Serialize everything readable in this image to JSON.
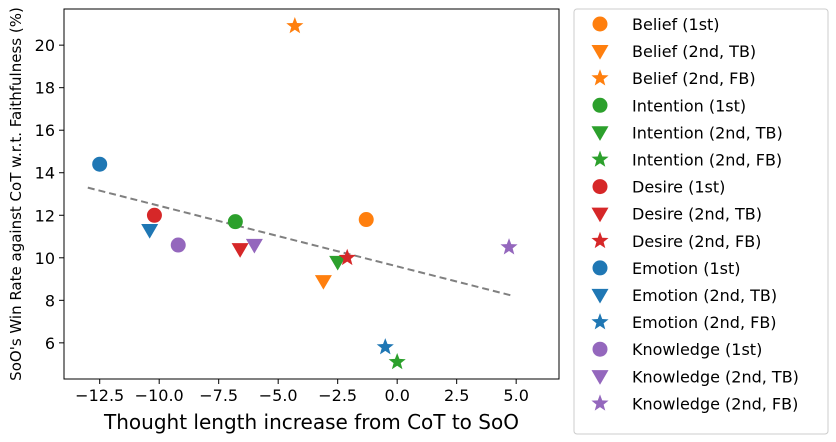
{
  "chart_data": {
    "type": "scatter",
    "title": "",
    "xlabel": "Thought length increase from CoT to SoO",
    "ylabel": "SoO's Win Rate against CoT w.r.t. Faithfulness (%)",
    "xlim": [
      -14.0,
      6.8
    ],
    "ylim": [
      4.3,
      21.7
    ],
    "xticks": [
      -12.5,
      -10.0,
      -7.5,
      -5.0,
      -2.5,
      0.0,
      2.5,
      5.0
    ],
    "xtick_labels": [
      "−12.5",
      "−10.0",
      "−7.5",
      "−5.0",
      "−2.5",
      "0.0",
      "2.5",
      "5.0"
    ],
    "yticks": [
      6,
      8,
      10,
      12,
      14,
      16,
      18,
      20
    ],
    "ytick_labels": [
      "6",
      "8",
      "10",
      "12",
      "14",
      "16",
      "18",
      "20"
    ],
    "grid": false,
    "legend_position": "outside-right",
    "colors": {
      "Belief": "#ff7f0e",
      "Intention": "#2ca02c",
      "Desire": "#d62728",
      "Emotion": "#1f77b4",
      "Knowledge": "#9467bd",
      "trend": "#808080"
    },
    "series": [
      {
        "name": "Belief (1st)",
        "category": "Belief",
        "marker": "circle",
        "x": -1.3,
        "y": 11.8
      },
      {
        "name": "Belief (2nd, TB)",
        "category": "Belief",
        "marker": "triangle-down",
        "x": -3.1,
        "y": 8.9
      },
      {
        "name": "Belief (2nd, FB)",
        "category": "Belief",
        "marker": "star",
        "x": -4.3,
        "y": 20.9
      },
      {
        "name": "Intention (1st)",
        "category": "Intention",
        "marker": "circle",
        "x": -6.8,
        "y": 11.7
      },
      {
        "name": "Intention (2nd, TB)",
        "category": "Intention",
        "marker": "triangle-down",
        "x": -2.5,
        "y": 9.8
      },
      {
        "name": "Intention (2nd, FB)",
        "category": "Intention",
        "marker": "star",
        "x": 0.0,
        "y": 5.1
      },
      {
        "name": "Desire (1st)",
        "category": "Desire",
        "marker": "circle",
        "x": -10.2,
        "y": 12.0
      },
      {
        "name": "Desire (2nd, TB)",
        "category": "Desire",
        "marker": "triangle-down",
        "x": -6.6,
        "y": 10.4
      },
      {
        "name": "Desire (2nd, FB)",
        "category": "Desire",
        "marker": "star",
        "x": -2.1,
        "y": 10.0
      },
      {
        "name": "Emotion (1st)",
        "category": "Emotion",
        "marker": "circle",
        "x": -12.5,
        "y": 14.4
      },
      {
        "name": "Emotion (2nd, TB)",
        "category": "Emotion",
        "marker": "triangle-down",
        "x": -10.4,
        "y": 11.3
      },
      {
        "name": "Emotion (2nd, FB)",
        "category": "Emotion",
        "marker": "star",
        "x": -0.5,
        "y": 5.8
      },
      {
        "name": "Knowledge (1st)",
        "category": "Knowledge",
        "marker": "circle",
        "x": -9.2,
        "y": 10.6
      },
      {
        "name": "Knowledge (2nd, TB)",
        "category": "Knowledge",
        "marker": "triangle-down",
        "x": -6.0,
        "y": 10.6
      },
      {
        "name": "Knowledge (2nd, FB)",
        "category": "Knowledge",
        "marker": "star",
        "x": 4.7,
        "y": 10.5
      }
    ],
    "trend_line": {
      "x": [
        -13.0,
        4.9
      ],
      "y": [
        13.3,
        8.2
      ],
      "style": "dashed"
    }
  }
}
